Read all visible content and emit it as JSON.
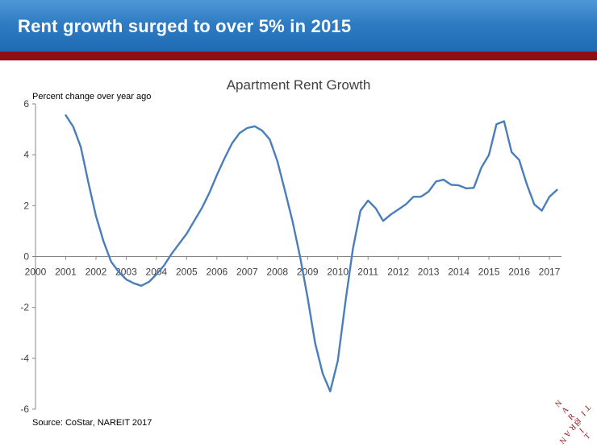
{
  "header": {
    "title": "Rent growth surged to over 5% in 2015"
  },
  "source": "Source: CoStar, NAREIT 2017",
  "logo": {
    "text": "NAREIT",
    "color": "#8b0f14"
  },
  "colors": {
    "header": "#2f7cc4",
    "band": "#8b0f14",
    "line": "#4a7ebb"
  },
  "chart_data": {
    "type": "line",
    "title": "Apartment Rent Growth",
    "ylabel": "Percent change over year ago",
    "xlabel": "",
    "xlim": [
      2000,
      2017.4
    ],
    "ylim": [
      -6,
      6
    ],
    "y_ticks": [
      6,
      4,
      2,
      0,
      -2,
      -4,
      -6
    ],
    "x_ticks": [
      2000,
      2001,
      2002,
      2003,
      2004,
      2005,
      2006,
      2007,
      2008,
      2009,
      2010,
      2011,
      2012,
      2013,
      2014,
      2015,
      2016,
      2017
    ],
    "grid": false,
    "legend": "none",
    "series": [
      {
        "color": "#4a7ebb",
        "x": [
          2001.0,
          2001.25,
          2001.5,
          2001.75,
          2002.0,
          2002.25,
          2002.5,
          2002.75,
          2003.0,
          2003.25,
          2003.5,
          2003.75,
          2004.0,
          2004.25,
          2004.5,
          2004.75,
          2005.0,
          2005.25,
          2005.5,
          2005.75,
          2006.0,
          2006.25,
          2006.5,
          2006.75,
          2007.0,
          2007.25,
          2007.5,
          2007.75,
          2008.0,
          2008.25,
          2008.5,
          2008.75,
          2009.0,
          2009.25,
          2009.5,
          2009.75,
          2010.0,
          2010.25,
          2010.5,
          2010.75,
          2011.0,
          2011.25,
          2011.5,
          2011.75,
          2012.0,
          2012.25,
          2012.5,
          2012.75,
          2013.0,
          2013.25,
          2013.5,
          2013.75,
          2014.0,
          2014.25,
          2014.5,
          2014.75,
          2015.0,
          2015.25,
          2015.5,
          2015.75,
          2016.0,
          2016.25,
          2016.5,
          2016.75,
          2017.0,
          2017.25
        ],
        "values": [
          5.55,
          5.1,
          4.3,
          2.9,
          1.6,
          0.6,
          -0.2,
          -0.6,
          -0.9,
          -1.05,
          -1.15,
          -1.0,
          -0.7,
          -0.35,
          0.1,
          0.5,
          0.9,
          1.4,
          1.9,
          2.5,
          3.2,
          3.85,
          4.45,
          4.85,
          5.05,
          5.12,
          4.95,
          4.6,
          3.75,
          2.6,
          1.4,
          0.0,
          -1.6,
          -3.4,
          -4.6,
          -5.3,
          -4.1,
          -1.8,
          0.3,
          1.8,
          2.2,
          1.9,
          1.4,
          1.65,
          1.85,
          2.05,
          2.35,
          2.35,
          2.55,
          2.95,
          3.02,
          2.82,
          2.8,
          2.68,
          2.7,
          3.5,
          4.0,
          5.2,
          5.32,
          4.1,
          3.8,
          2.85,
          2.05,
          1.8,
          2.35,
          2.62
        ]
      }
    ]
  }
}
